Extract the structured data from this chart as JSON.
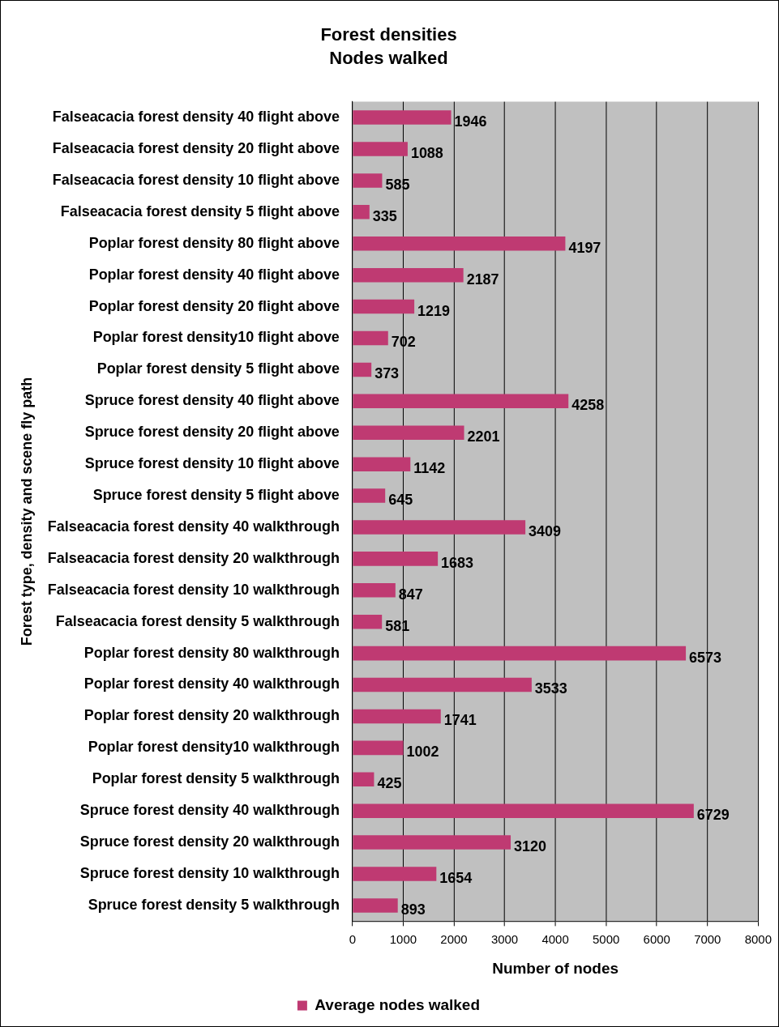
{
  "chart_data": {
    "type": "bar",
    "orientation": "horizontal",
    "title": "Forest densities",
    "subtitle": "Nodes walked",
    "xlabel": "Number of nodes",
    "ylabel": "Forest type, density and scene fly path",
    "categories": [
      "Falseacacia forest density 40 flight above",
      "Falseacacia forest density 20 flight above",
      "Falseacacia forest density 10 flight above",
      "Falseacacia forest density 5 flight above",
      "Poplar forest density 80 flight above",
      "Poplar forest density 40 flight above",
      "Poplar forest density 20 flight above",
      "Poplar forest density10 flight above",
      "Poplar forest density 5 flight above",
      "Spruce forest density 40 flight above",
      "Spruce forest density 20 flight above",
      "Spruce forest density 10 flight above",
      "Spruce forest density 5 flight above",
      "Falseacacia forest density 40 walkthrough",
      "Falseacacia forest density 20 walkthrough",
      "Falseacacia forest density 10 walkthrough",
      "Falseacacia forest density 5 walkthrough",
      "Poplar forest density 80 walkthrough",
      "Poplar forest density 40 walkthrough",
      "Poplar forest density 20 walkthrough",
      "Poplar forest density10 walkthrough",
      "Poplar forest density 5 walkthrough",
      "Spruce forest density 40 walkthrough",
      "Spruce forest density 20 walkthrough",
      "Spruce forest density 10 walkthrough",
      "Spruce forest density 5 walkthrough"
    ],
    "series": [
      {
        "name": "Average nodes walked",
        "color": "#bf3a72",
        "values": [
          1946,
          1088,
          585,
          335,
          4197,
          2187,
          1219,
          702,
          373,
          4258,
          2201,
          1142,
          645,
          3409,
          1683,
          847,
          581,
          6573,
          3533,
          1741,
          1002,
          425,
          6729,
          3120,
          1654,
          893
        ]
      }
    ],
    "xlim": [
      0,
      8000
    ],
    "xticks": [
      0,
      1000,
      2000,
      3000,
      4000,
      5000,
      6000,
      7000,
      8000
    ],
    "grid": "x",
    "legend": "bottom",
    "data_labels": true
  }
}
